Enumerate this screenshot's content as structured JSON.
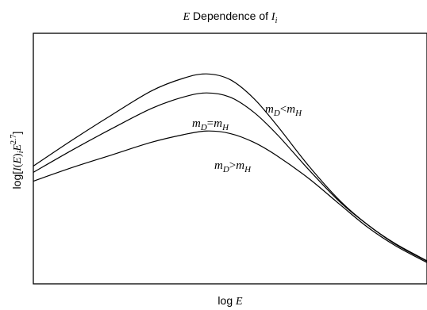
{
  "chart_data": {
    "type": "line",
    "title": {
      "italic_part": "E",
      "text_part": " Dependence of ",
      "subscript_symbol": "I",
      "subscript": "i"
    },
    "xlabel": {
      "prefix": "log ",
      "italic_part": "E"
    },
    "ylabel": {
      "prefix": "log[",
      "italic_part": "I",
      "middle": "(",
      "italic_E": "E",
      "close": ")",
      "sub": "i",
      "E2": "E",
      "sup": "2.7",
      "end": "]"
    },
    "xlim": [
      0,
      1
    ],
    "ylim": [
      0,
      1
    ],
    "grid": false,
    "legend": "none",
    "series": [
      {
        "label_parts": {
          "m1": "m",
          "s1": "D",
          "op": "<",
          "m2": "m",
          "s2": "H"
        },
        "x": [
          0,
          0.1,
          0.2,
          0.3,
          0.38,
          0.44,
          0.5,
          0.56,
          0.62,
          0.7,
          0.78,
          0.85,
          0.92,
          1.0
        ],
        "y": [
          0.47,
          0.575,
          0.675,
          0.77,
          0.82,
          0.838,
          0.815,
          0.74,
          0.63,
          0.47,
          0.33,
          0.235,
          0.16,
          0.092
        ]
      },
      {
        "label_parts": {
          "m1": "m",
          "s1": "D",
          "op": "=",
          "m2": "m",
          "s2": "H"
        },
        "x": [
          0,
          0.1,
          0.2,
          0.3,
          0.38,
          0.44,
          0.5,
          0.56,
          0.62,
          0.7,
          0.78,
          0.85,
          0.92,
          1.0
        ],
        "y": [
          0.445,
          0.535,
          0.62,
          0.7,
          0.745,
          0.762,
          0.745,
          0.685,
          0.595,
          0.455,
          0.325,
          0.235,
          0.158,
          0.09
        ]
      },
      {
        "label_parts": {
          "m1": "m",
          "s1": "D",
          "op": ">",
          "m2": "m",
          "s2": "H"
        },
        "x": [
          0,
          0.1,
          0.2,
          0.3,
          0.38,
          0.44,
          0.5,
          0.56,
          0.62,
          0.7,
          0.78,
          0.85,
          0.92,
          1.0
        ],
        "y": [
          0.41,
          0.465,
          0.515,
          0.565,
          0.595,
          0.61,
          0.6,
          0.565,
          0.51,
          0.42,
          0.315,
          0.225,
          0.152,
          0.085
        ]
      }
    ]
  }
}
